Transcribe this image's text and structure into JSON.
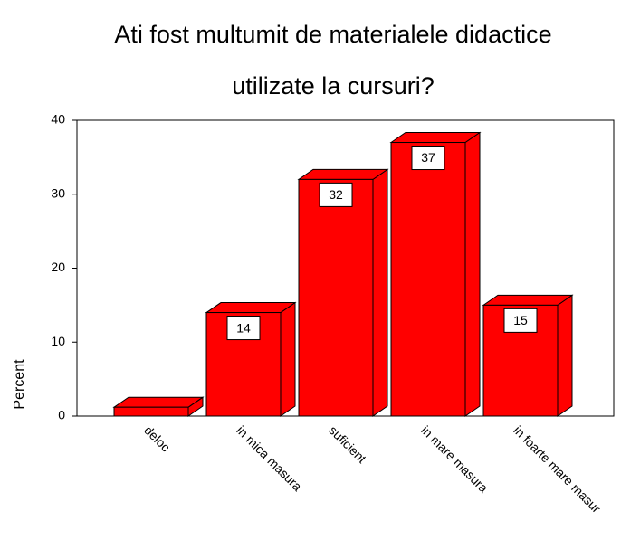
{
  "chart_data": {
    "type": "bar3d",
    "title": [
      "Ati fost multumit  de materialele didactice",
      "utilizate la cursuri?"
    ],
    "y_label": "Percent",
    "categories": [
      "deloc",
      "in mica masura",
      "suficient",
      "in mare masura",
      "in foarte mare masur"
    ],
    "values": [
      1.2,
      14,
      32,
      37,
      15
    ],
    "value_labels": [
      null,
      "14",
      "32",
      "37",
      "15"
    ],
    "color": "#ff0000",
    "ylim": [
      0,
      40
    ],
    "yticks": [
      0,
      10,
      20,
      30,
      40
    ],
    "grid": false
  }
}
